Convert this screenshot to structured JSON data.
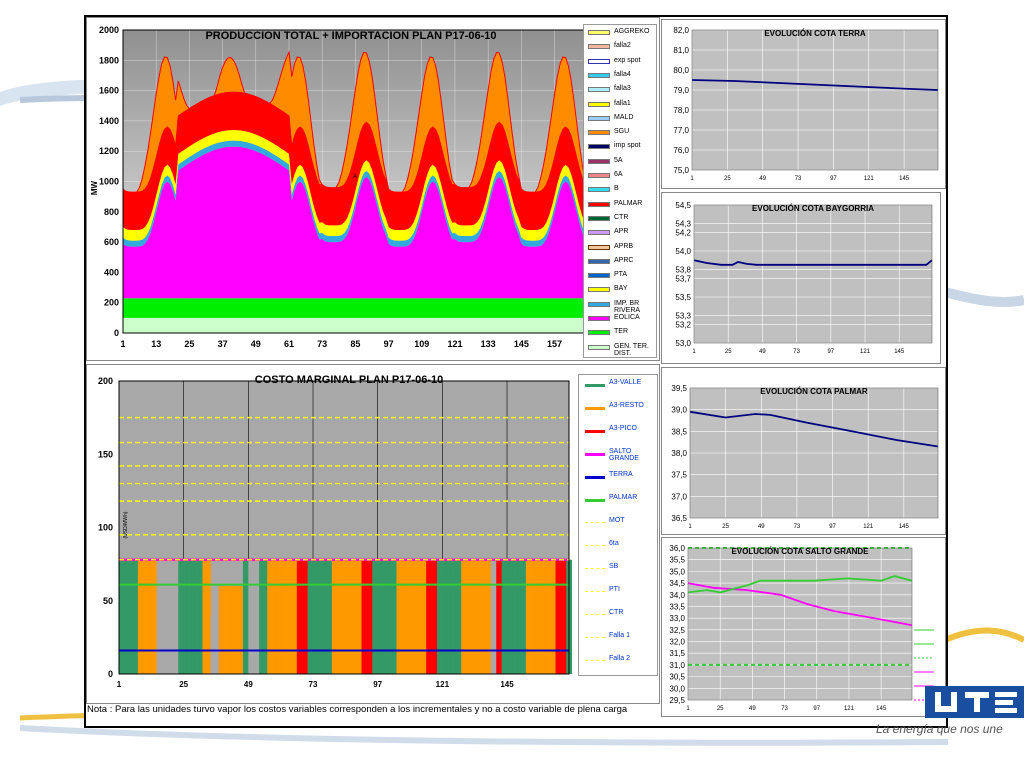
{
  "note": "Nota : Para las unidades turvo vapor los costos variables corresponden a los incrementales y no a costo variable de plena carga",
  "slogan": "La energía que nos une",
  "chart_data": [
    {
      "id": "produccion",
      "type": "area",
      "title": "PRODUCCION TOTAL + IMPORTACION PLAN   P17-06-10",
      "ylabel": "MW",
      "ylim": [
        0,
        2000
      ],
      "xlim": [
        1,
        168
      ],
      "y_ticks": [
        0,
        200,
        400,
        600,
        800,
        1000,
        1200,
        1400,
        1600,
        1800,
        2000
      ],
      "x_ticks": [
        1,
        13,
        25,
        37,
        49,
        61,
        73,
        85,
        97,
        109,
        121,
        133,
        145,
        157
      ],
      "annotation": "A",
      "legend_entries": [
        {
          "label": "AGGREKO",
          "color": "#ffff66"
        },
        {
          "label": "falla2",
          "color": "#f4b8a0"
        },
        {
          "label": "exp spot",
          "color": "#ffffff",
          "border": "#3333aa"
        },
        {
          "label": "falla4",
          "color": "#33ccee"
        },
        {
          "label": "falla3",
          "color": "#aaeeff"
        },
        {
          "label": "falla1",
          "color": "#ffff00"
        },
        {
          "label": "MALD",
          "color": "#99ccff"
        },
        {
          "label": "SGU",
          "color": "#ff8c00"
        },
        {
          "label": "imp spot",
          "color": "#000066"
        },
        {
          "label": "5A",
          "color": "#993366"
        },
        {
          "label": "6A",
          "color": "#ee8888"
        },
        {
          "label": "B",
          "color": "#33ddee"
        },
        {
          "label": "PALMAR",
          "color": "#ff0000"
        },
        {
          "label": "CTR",
          "color": "#006633"
        },
        {
          "label": "APR",
          "color": "#cc99ff"
        },
        {
          "label": "APRB",
          "color": "#f4c89a",
          "border": "#663300"
        },
        {
          "label": "APRC",
          "color": "#3366aa"
        },
        {
          "label": "PTA",
          "color": "#0066cc"
        },
        {
          "label": "BAY",
          "color": "#ffff00"
        },
        {
          "label": "IMP. BR RIVERA",
          "color": "#33aadd"
        },
        {
          "label": "EOLICA",
          "color": "#ff00ff"
        },
        {
          "label": "TER",
          "color": "#00ee00"
        },
        {
          "label": "GEN. TER. DIST.",
          "color": "#ccffcc"
        }
      ],
      "stack": [
        {
          "name": "GEN. TER. DIST.",
          "color": "#ccffcc",
          "values": [
            100
          ]
        },
        {
          "name": "TER",
          "color": "#00ee00",
          "values": [
            130
          ]
        },
        {
          "name": "EOLICA",
          "color": "#ff00ff",
          "values_desc": "low 340-420 at night, ~830-1000 peak hours 25-60"
        },
        {
          "name": "IMP. BR RIVERA",
          "color": "#33aadd",
          "values": [
            40
          ]
        },
        {
          "name": "BAY",
          "color": "#ffff00",
          "values": [
            70
          ]
        },
        {
          "name": "PALMAR",
          "color": "#ff0000",
          "values": [
            250
          ]
        },
        {
          "name": "SGU",
          "color": "#ff8c00",
          "values_desc": "0-450 daily peaks"
        }
      ]
    },
    {
      "id": "costo",
      "type": "bar",
      "title": "COSTO MARGINAL PLAN   P17-06-10",
      "ylabel": "(USD/MWh)",
      "ylim": [
        0,
        200
      ],
      "y_ticks": [
        0,
        50,
        100,
        150,
        200
      ],
      "x_ticks": [
        1,
        25,
        49,
        73,
        97,
        121,
        145
      ],
      "series": [
        {
          "name": "A3-VALLE",
          "color": "#339966",
          "value": 78
        },
        {
          "name": "A3-RESTO",
          "color": "#ff9900",
          "value": 78
        },
        {
          "name": "A3-PICO",
          "color": "#ff0000",
          "value": 78
        },
        {
          "name": "SALTO GRANDE",
          "color": "#ff00ff",
          "value": 78
        },
        {
          "name": "TERRA",
          "color": "#0000cc",
          "value": 16
        },
        {
          "name": "PALMAR",
          "color": "#33cc33",
          "value": 61
        },
        {
          "name": "MOT",
          "color": "#ffff00",
          "value": 175
        },
        {
          "name": "6ta",
          "color": "#ffff00",
          "value": 158
        },
        {
          "name": "SB",
          "color": "#ffff00",
          "value": 142
        },
        {
          "name": "PTI",
          "color": "#ffff00",
          "value": 130
        },
        {
          "name": "CTR",
          "color": "#ffff00",
          "value": 118
        },
        {
          "name": "Falla 1",
          "color": "#ffff00",
          "value": 95
        },
        {
          "name": "Falla 2",
          "color": "#ffff00",
          "value": 78
        }
      ]
    },
    {
      "id": "terra",
      "type": "line",
      "title": "EVOLUCIÓN COTA TERRA",
      "ylim": [
        75.0,
        82.0
      ],
      "y_ticks": [
        "75,0",
        "76,0",
        "77,0",
        "78,0",
        "79,0",
        "80,0",
        "81,0",
        "82,0"
      ],
      "x_ticks": [
        1,
        25,
        49,
        73,
        97,
        121,
        145
      ],
      "points": [
        [
          1,
          79.5
        ],
        [
          30,
          79.45
        ],
        [
          60,
          79.35
        ],
        [
          90,
          79.25
        ],
        [
          120,
          79.15
        ],
        [
          150,
          79.05
        ],
        [
          168,
          79.0
        ]
      ]
    },
    {
      "id": "baygorria",
      "type": "line",
      "title": "EVOLUCIÓN COTA BAYGORRIA",
      "ylim": [
        53.0,
        54.5
      ],
      "y_ticks": [
        "53,0",
        "53,2",
        "53,3",
        "53,5",
        "53,7",
        "53,8",
        "54,0",
        "54,2",
        "54,3",
        "54,5"
      ],
      "y_tick_labels_shown": [
        "53,0",
        "53,2",
        "53,3",
        "53,5",
        "53,7",
        "53,8",
        "54,0",
        "54,2",
        "54,3",
        "54,5"
      ],
      "x_ticks": [
        1,
        25,
        49,
        73,
        97,
        121,
        145
      ],
      "points": [
        [
          1,
          53.9
        ],
        [
          10,
          53.87
        ],
        [
          20,
          53.85
        ],
        [
          28,
          53.85
        ],
        [
          32,
          53.88
        ],
        [
          38,
          53.86
        ],
        [
          45,
          53.85
        ],
        [
          100,
          53.85
        ],
        [
          164,
          53.85
        ],
        [
          168,
          53.9
        ]
      ]
    },
    {
      "id": "palmar",
      "type": "line",
      "title": "EVOLUCIÓN COTA PALMAR",
      "ylim": [
        36.5,
        39.5
      ],
      "y_ticks": [
        "36,5",
        "37,0",
        "37,5",
        "38,0",
        "38,5",
        "39,0",
        "39,5"
      ],
      "x_ticks": [
        1,
        25,
        49,
        73,
        97,
        121,
        145
      ],
      "points": [
        [
          1,
          38.95
        ],
        [
          25,
          38.82
        ],
        [
          45,
          38.9
        ],
        [
          55,
          38.88
        ],
        [
          80,
          38.7
        ],
        [
          110,
          38.5
        ],
        [
          140,
          38.3
        ],
        [
          168,
          38.15
        ]
      ]
    },
    {
      "id": "saltogrande",
      "type": "line",
      "title": "EVOLUCIÓN COTA SALTO GRANDE",
      "ylim": [
        29.5,
        36.0
      ],
      "y_ticks": [
        "29,5",
        "30,0",
        "30,5",
        "31,0",
        "31,5",
        "32,0",
        "32,5",
        "33,0",
        "33,5",
        "34,0",
        "34,5",
        "35,0",
        "35,5",
        "36,0"
      ],
      "x_ticks": [
        1,
        25,
        49,
        73,
        97,
        121,
        145
      ],
      "series": [
        {
          "color": "#ff00ff",
          "points": [
            [
              1,
              34.5
            ],
            [
              20,
              34.3
            ],
            [
              45,
              34.2
            ],
            [
              70,
              34.0
            ],
            [
              90,
              33.6
            ],
            [
              110,
              33.3
            ],
            [
              140,
              33.0
            ],
            [
              168,
              32.7
            ]
          ]
        },
        {
          "color": "#33cc33",
          "points": [
            [
              1,
              34.1
            ],
            [
              15,
              34.2
            ],
            [
              25,
              34.1
            ],
            [
              45,
              34.4
            ],
            [
              55,
              34.6
            ],
            [
              75,
              34.6
            ],
            [
              95,
              34.6
            ],
            [
              120,
              34.7
            ],
            [
              145,
              34.6
            ],
            [
              155,
              34.8
            ],
            [
              168,
              34.6
            ]
          ]
        },
        {
          "color": "#33cc33",
          "dashed": true,
          "points": [
            [
              1,
              36.0
            ],
            [
              168,
              36.0
            ]
          ]
        },
        {
          "color": "#33cc33",
          "dashed": true,
          "points": [
            [
              1,
              31.0
            ],
            [
              168,
              31.0
            ]
          ]
        }
      ]
    }
  ]
}
